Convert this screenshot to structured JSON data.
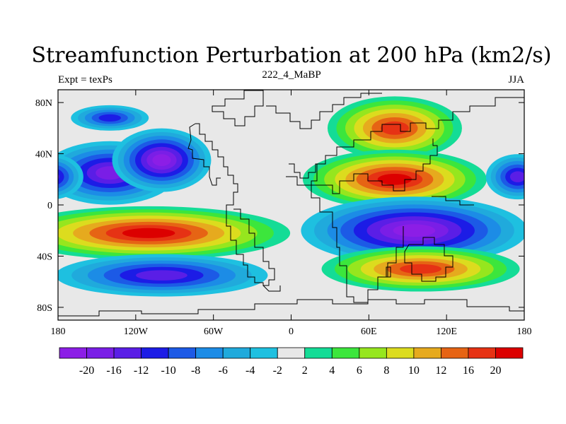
{
  "chart_data": {
    "type": "heatmap",
    "title": "Streamfunction Perturbation at 200 hPa (km2/s)",
    "left_label": "Expt = texPs",
    "center_label": "222_4_MaBP",
    "right_label": "JJA",
    "x_ticks": [
      "180",
      "120W",
      "60W",
      "0",
      "60E",
      "120E",
      "180"
    ],
    "x_tick_values": [
      -180,
      -120,
      -60,
      0,
      60,
      120,
      180
    ],
    "y_ticks": [
      "80N",
      "40N",
      "0",
      "40S",
      "80S"
    ],
    "y_tick_values": [
      80,
      40,
      0,
      -40,
      -80
    ],
    "xlim": [
      -180,
      180
    ],
    "ylim": [
      -90,
      90
    ],
    "colorbar_labels": [
      "-20",
      "-16",
      "-12",
      "-10",
      "-8",
      "-6",
      "-4",
      "-2",
      "2",
      "4",
      "6",
      "8",
      "10",
      "12",
      "16",
      "20"
    ],
    "colorbar_colors": [
      "#8c1ee6",
      "#7a1ee6",
      "#5a1ee6",
      "#1c1ce6",
      "#1c5ae6",
      "#1c8ce6",
      "#20aadc",
      "#1ec0e0",
      "#e8e8e8",
      "#14dc96",
      "#3ce63c",
      "#96e61e",
      "#dcdc1e",
      "#e6aa1e",
      "#e66414",
      "#e63214",
      "#dc0000"
    ],
    "features": [
      {
        "name": "negative-center-north-pacific",
        "lon": -140,
        "lat": 25,
        "value": -18
      },
      {
        "name": "negative-center-north-atlantic",
        "lon": -100,
        "lat": 35,
        "value": -20
      },
      {
        "name": "negative-center-far-north-pacific",
        "lon": -140,
        "lat": 68,
        "value": -10
      },
      {
        "name": "positive-band-south-pacific",
        "lon": -110,
        "lat": -22,
        "value": 20
      },
      {
        "name": "negative-center-south-atlantic",
        "lon": -100,
        "lat": -55,
        "value": -14
      },
      {
        "name": "positive-center-asia-north",
        "lon": 80,
        "lat": 60,
        "value": 16
      },
      {
        "name": "positive-center-asia",
        "lon": 80,
        "lat": 20,
        "value": 20
      },
      {
        "name": "negative-band-indian-ocean",
        "lon": 95,
        "lat": -20,
        "value": -20
      },
      {
        "name": "positive-center-southern-indian",
        "lon": 100,
        "lat": -50,
        "value": 16
      },
      {
        "name": "negative-center-west-pacific",
        "lon": 175,
        "lat": 22,
        "value": -12
      }
    ]
  }
}
